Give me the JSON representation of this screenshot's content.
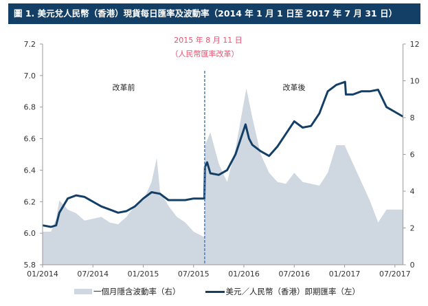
{
  "title": "圖 1. 美元兌人民幣（香港）現貨每日匯率及波動率（2014 年 1 月 1 日至 2017 年 7 月 31 日）",
  "chart_data": {
    "type": "line+area",
    "title": "圖 1. 美元兌人民幣（香港）現貨每日匯率及波動率（2014 年 1 月 1 日至 2017 年 7 月 31 日）",
    "x_range": [
      "2014-01-01",
      "2017-07-31"
    ],
    "x_ticks": [
      "01/2014",
      "07/2014",
      "01/2015",
      "07/2015",
      "01/2016",
      "07/2016",
      "01/2017",
      "07/2017"
    ],
    "y_left": {
      "range": [
        5.8,
        7.2
      ],
      "ticks": [
        "5.8",
        "6.0",
        "6.2",
        "6.4",
        "6.6",
        "6.8",
        "7.0",
        "7.2"
      ]
    },
    "y_right": {
      "range": [
        0,
        12
      ],
      "ticks": [
        "0",
        "2",
        "4",
        "6",
        "8",
        "10",
        "12"
      ]
    },
    "grid": false,
    "legend_position": "bottom",
    "annotations": {
      "event_date": "2015-08-11",
      "event_line1": "2015 年 8 月 11 日",
      "event_line2": "（人民幣匯率改革）",
      "before": "改革前",
      "after": "改革後"
    },
    "colors": {
      "rate": "#133f66",
      "vol": "#cfd8e0",
      "event": "#4a7cc0",
      "annotation": "#e8506e"
    },
    "series": [
      {
        "name": "一個月隱含波動率（右）",
        "axis": "right",
        "kind": "area",
        "x": [
          "2014-01-01",
          "2014-02-01",
          "2014-02-20",
          "2014-03-01",
          "2014-04-01",
          "2014-05-01",
          "2014-06-01",
          "2014-07-01",
          "2014-08-01",
          "2014-09-01",
          "2014-10-01",
          "2014-11-01",
          "2014-12-01",
          "2015-01-01",
          "2015-02-01",
          "2015-02-20",
          "2015-03-01",
          "2015-04-01",
          "2015-05-01",
          "2015-06-01",
          "2015-07-01",
          "2015-08-10",
          "2015-08-12",
          "2015-09-01",
          "2015-10-01",
          "2015-11-01",
          "2015-12-01",
          "2016-01-10",
          "2016-02-01",
          "2016-03-01",
          "2016-04-01",
          "2016-05-01",
          "2016-06-01",
          "2016-07-01",
          "2016-08-01",
          "2016-09-01",
          "2016-10-01",
          "2016-11-01",
          "2016-12-01",
          "2017-01-01",
          "2017-02-01",
          "2017-03-01",
          "2017-04-01",
          "2017-05-01",
          "2017-06-01",
          "2017-07-31"
        ],
        "values": [
          1.8,
          1.8,
          2.5,
          3.5,
          3.0,
          2.8,
          2.4,
          2.5,
          2.6,
          2.3,
          2.2,
          2.6,
          3.2,
          3.5,
          4.5,
          5.8,
          4.0,
          3.2,
          2.6,
          2.3,
          1.8,
          1.5,
          6.5,
          7.2,
          5.5,
          4.5,
          6.3,
          9.6,
          8.0,
          6.0,
          5.0,
          4.5,
          4.4,
          5.0,
          4.5,
          4.4,
          4.3,
          5.0,
          6.5,
          6.5,
          5.5,
          4.5,
          3.5,
          2.3,
          3.0,
          3.0
        ]
      },
      {
        "name": "美元／人民幣（香港）即期匯率（左）",
        "axis": "left",
        "kind": "line",
        "x": [
          "2014-01-01",
          "2014-02-01",
          "2014-02-20",
          "2014-03-01",
          "2014-04-01",
          "2014-05-01",
          "2014-06-01",
          "2014-07-01",
          "2014-08-01",
          "2014-09-01",
          "2014-10-01",
          "2014-11-01",
          "2014-12-01",
          "2015-01-01",
          "2015-02-01",
          "2015-03-01",
          "2015-04-01",
          "2015-05-01",
          "2015-06-01",
          "2015-07-01",
          "2015-08-10",
          "2015-08-12",
          "2015-08-20",
          "2015-09-01",
          "2015-10-01",
          "2015-11-01",
          "2015-12-01",
          "2016-01-07",
          "2016-01-20",
          "2016-02-01",
          "2016-03-01",
          "2016-04-01",
          "2016-05-01",
          "2016-06-01",
          "2016-07-01",
          "2016-08-01",
          "2016-09-01",
          "2016-10-01",
          "2016-11-01",
          "2016-12-01",
          "2017-01-03",
          "2017-01-06",
          "2017-02-01",
          "2017-03-01",
          "2017-04-01",
          "2017-05-01",
          "2017-06-01",
          "2017-07-31"
        ],
        "values": [
          6.05,
          6.04,
          6.05,
          6.13,
          6.22,
          6.24,
          6.23,
          6.2,
          6.17,
          6.15,
          6.13,
          6.14,
          6.17,
          6.22,
          6.26,
          6.25,
          6.21,
          6.21,
          6.21,
          6.22,
          6.22,
          6.42,
          6.45,
          6.38,
          6.37,
          6.4,
          6.5,
          6.69,
          6.6,
          6.56,
          6.52,
          6.49,
          6.55,
          6.63,
          6.71,
          6.67,
          6.68,
          6.76,
          6.9,
          6.94,
          6.96,
          6.88,
          6.88,
          6.9,
          6.9,
          6.91,
          6.8,
          6.74
        ]
      }
    ]
  },
  "legend": {
    "vol": "一個月隱含波動率（右）",
    "rate": "美元／人民幣（香港）即期匯率（左）"
  }
}
